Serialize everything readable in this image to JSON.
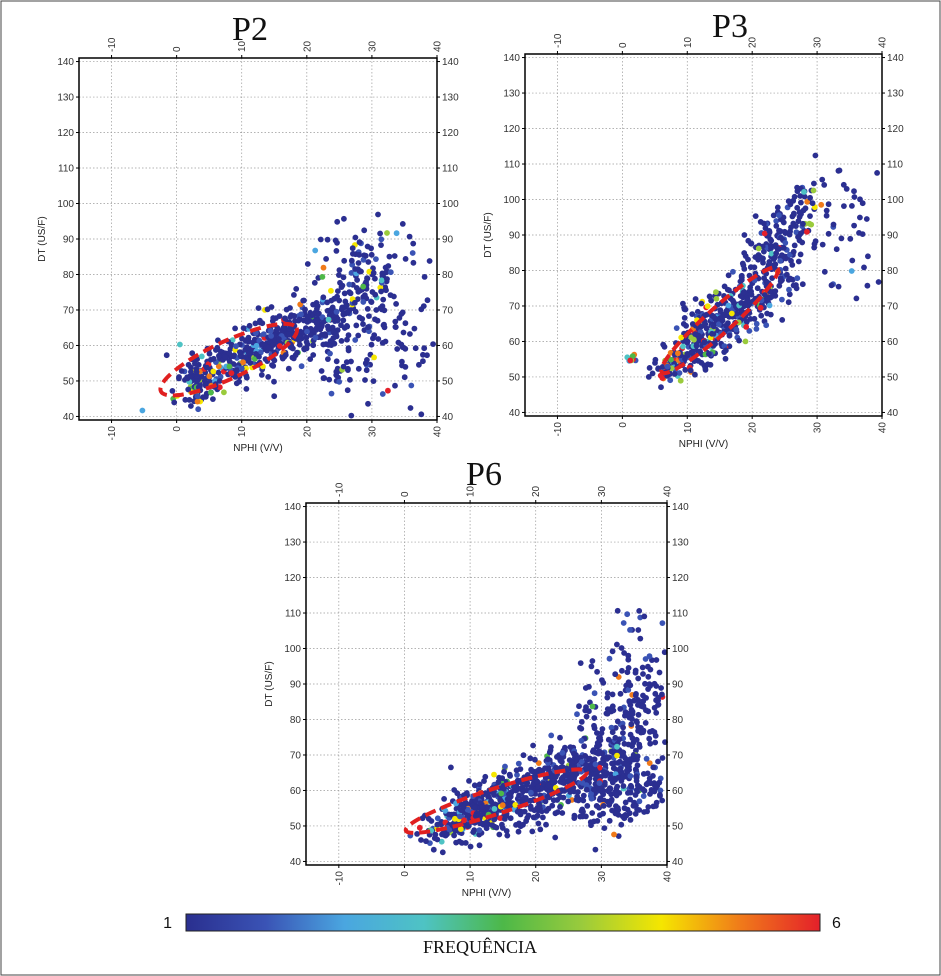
{
  "colorbar": {
    "min_label": "1",
    "max_label": "6",
    "title": "FREQUÊNCIA",
    "colors": [
      "#2a2f8f",
      "#3a53b5",
      "#4aa6e0",
      "#4ec3c4",
      "#4db848",
      "#9acb3c",
      "#f5e600",
      "#f07a1a",
      "#e4202a"
    ]
  },
  "chart_data": [
    {
      "type": "scatter",
      "title": "P2",
      "xlabel": "NPHI (V/V)",
      "ylabel": "DT (US/F)",
      "xlim": [
        -15,
        40
      ],
      "ylim": [
        39,
        141
      ],
      "xticks": [
        -10,
        0,
        10,
        20,
        30,
        40
      ],
      "yticks": [
        40,
        50,
        60,
        70,
        80,
        90,
        100,
        110,
        120,
        130,
        140
      ],
      "grid": true,
      "highlight_ellipse": {
        "center": [
          8,
          56
        ],
        "rx": 11.5,
        "ry": 9.5,
        "angle_deg": -25
      },
      "clusters": [
        {
          "cx": 4,
          "cy": 49,
          "sx": 2.2,
          "sy": 2.5,
          "n": 80,
          "hot": 0.35
        },
        {
          "cx": 10,
          "cy": 57,
          "sx": 4.5,
          "sy": 4,
          "n": 220,
          "hot": 0.12
        },
        {
          "cx": 17,
          "cy": 63,
          "sx": 3.5,
          "sy": 4,
          "n": 120,
          "hot": 0.08
        },
        {
          "cx": 23,
          "cy": 66,
          "sx": 3.5,
          "sy": 5,
          "n": 110,
          "hot": 0.04
        },
        {
          "cx": 28,
          "cy": 78,
          "sx": 3.5,
          "sy": 8,
          "n": 150,
          "hot": 0.08
        },
        {
          "cx": 33,
          "cy": 63,
          "sx": 4,
          "sy": 10,
          "n": 70,
          "hot": 0.02
        },
        {
          "cx": 26,
          "cy": 52,
          "sx": 2,
          "sy": 2,
          "n": 25,
          "hot": 0.05
        }
      ]
    },
    {
      "type": "scatter",
      "title": "P3",
      "xlabel": "NPHI (V/V)",
      "ylabel": "DT (US/F)",
      "xlim": [
        -15,
        40
      ],
      "ylim": [
        39,
        141
      ],
      "xticks": [
        -10,
        0,
        10,
        20,
        30,
        40
      ],
      "yticks": [
        40,
        50,
        60,
        70,
        80,
        90,
        100,
        110,
        120,
        130,
        140
      ],
      "grid": true,
      "highlight_ellipse": {
        "center": [
          15,
          66
        ],
        "rx": 12,
        "ry": 6.5,
        "angle_deg": -42
      },
      "clusters": [
        {
          "cx": 8,
          "cy": 54,
          "sx": 1.5,
          "sy": 2,
          "n": 60,
          "hot": 0.4
        },
        {
          "cx": 13,
          "cy": 62,
          "sx": 3,
          "sy": 4,
          "n": 200,
          "hot": 0.15
        },
        {
          "cx": 19,
          "cy": 70,
          "sx": 3,
          "sy": 4,
          "n": 140,
          "hot": 0.12
        },
        {
          "cx": 23,
          "cy": 85,
          "sx": 2.5,
          "sy": 6,
          "n": 150,
          "hot": 0.05
        },
        {
          "cx": 27,
          "cy": 97,
          "sx": 2,
          "sy": 6,
          "n": 60,
          "hot": 0.1
        },
        {
          "cx": 35,
          "cy": 92,
          "sx": 2.5,
          "sy": 11,
          "n": 40,
          "hot": 0.02
        },
        {
          "cx": 1.5,
          "cy": 55.5,
          "sx": 0.5,
          "sy": 1.2,
          "n": 8,
          "hot": 0.6
        }
      ]
    },
    {
      "type": "scatter",
      "title": "P6",
      "xlabel": "NPHI (V/V)",
      "ylabel": "DT (US/F)",
      "xlim": [
        -15,
        40
      ],
      "ylim": [
        39,
        141
      ],
      "xticks": [
        -10,
        0,
        10,
        20,
        30,
        40
      ],
      "yticks": [
        40,
        50,
        60,
        70,
        80,
        90,
        100,
        110,
        120,
        130,
        140
      ],
      "grid": true,
      "highlight_ellipse": {
        "center": [
          14,
          57
        ],
        "rx": 14.5,
        "ry": 6.5,
        "angle_deg": -18
      },
      "clusters": [
        {
          "cx": 9,
          "cy": 52,
          "sx": 3,
          "sy": 2.5,
          "n": 200,
          "hot": 0.22
        },
        {
          "cx": 15,
          "cy": 57,
          "sx": 4,
          "sy": 4,
          "n": 260,
          "hot": 0.14
        },
        {
          "cx": 24,
          "cy": 63,
          "sx": 4,
          "sy": 5,
          "n": 240,
          "hot": 0.04
        },
        {
          "cx": 31,
          "cy": 68,
          "sx": 4,
          "sy": 8,
          "n": 240,
          "hot": 0.03
        },
        {
          "cx": 35,
          "cy": 87,
          "sx": 3.5,
          "sy": 9,
          "n": 140,
          "hot": 0.04
        },
        {
          "cx": 34,
          "cy": 58,
          "sx": 4,
          "sy": 5,
          "n": 120,
          "hot": 0.02
        }
      ]
    }
  ]
}
